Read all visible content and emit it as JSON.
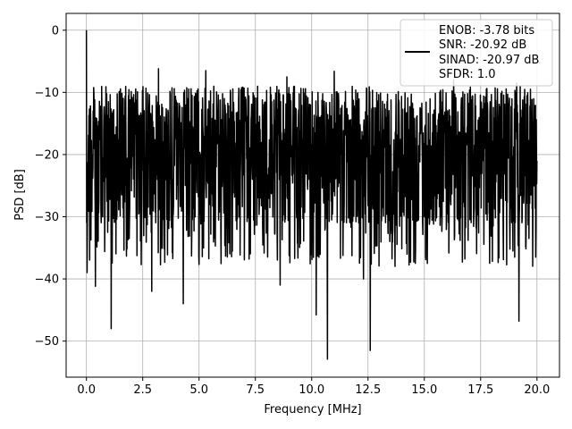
{
  "chart_data": {
    "type": "line",
    "title": "",
    "xlabel": "Frequency [MHz]",
    "ylabel": "PSD [dB]",
    "xlim": [
      -0.9,
      21.0
    ],
    "ylim": [
      -55.8,
      2.7
    ],
    "xticks": [
      0.0,
      2.5,
      5.0,
      7.5,
      10.0,
      12.5,
      15.0,
      17.5,
      20.0
    ],
    "xtick_labels": [
      "0.0",
      "2.5",
      "5.0",
      "7.5",
      "10.0",
      "12.5",
      "15.0",
      "17.5",
      "20.0"
    ],
    "yticks": [
      0,
      -10,
      -20,
      -30,
      -40,
      -50
    ],
    "ytick_labels": [
      "0",
      "−10",
      "−20",
      "−30",
      "−40",
      "−50"
    ],
    "grid": true,
    "legend_position": "top-right",
    "legend_lines": [
      "ENOB: -3.78 bits",
      "SNR: -20.92 dB",
      "SINAD: -20.97 dB",
      "SFDR: 1.0"
    ],
    "series": [
      {
        "color": "#000000",
        "x_range": [
          0.0,
          20.0
        ],
        "notable_points": [
          {
            "x": 0.0,
            "y": 0.0
          },
          {
            "x": 0.03,
            "y": -39.0
          },
          {
            "x": 0.4,
            "y": -41.2
          },
          {
            "x": 1.1,
            "y": -48.0
          },
          {
            "x": 1.6,
            "y": -11.0
          },
          {
            "x": 2.9,
            "y": -42.0
          },
          {
            "x": 3.2,
            "y": -6.2
          },
          {
            "x": 4.3,
            "y": -44.0
          },
          {
            "x": 5.3,
            "y": -6.5
          },
          {
            "x": 8.6,
            "y": -41.0
          },
          {
            "x": 8.9,
            "y": -7.5
          },
          {
            "x": 10.2,
            "y": -45.8
          },
          {
            "x": 10.7,
            "y": -52.9
          },
          {
            "x": 11.0,
            "y": -6.6
          },
          {
            "x": 12.3,
            "y": -40.0
          },
          {
            "x": 12.6,
            "y": -51.5
          },
          {
            "x": 13.7,
            "y": -38.0
          },
          {
            "x": 14.6,
            "y": -37.5
          },
          {
            "x": 16.3,
            "y": -8.0
          },
          {
            "x": 17.9,
            "y": -37.5
          },
          {
            "x": 19.1,
            "y": -8.5
          },
          {
            "x": 19.2,
            "y": -46.8
          },
          {
            "x": 20.0,
            "y": -21.0
          }
        ]
      }
    ]
  }
}
